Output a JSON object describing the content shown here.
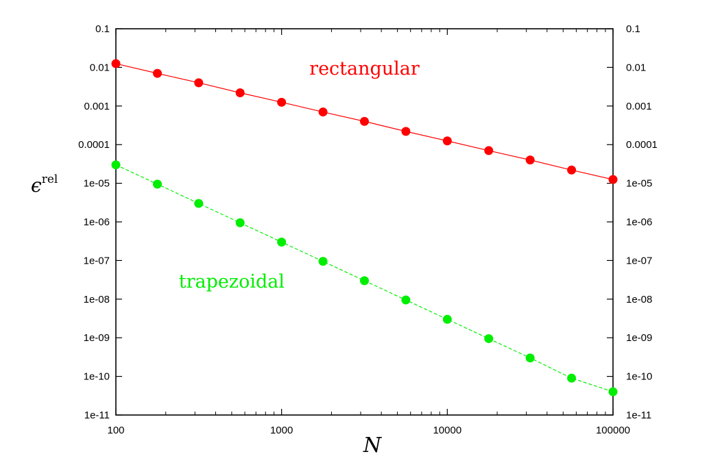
{
  "chart_data": {
    "type": "line",
    "xlabel": "N",
    "ylabel": {
      "main": "ϵ",
      "superscript": "rel"
    },
    "x_scale": "log",
    "y_scale": "log",
    "xlim": [
      100,
      100000
    ],
    "ylim": [
      1e-11,
      0.1
    ],
    "x_ticks": [
      {
        "value": 100,
        "label": "100"
      },
      {
        "value": 1000,
        "label": "1000"
      },
      {
        "value": 10000,
        "label": "10000"
      },
      {
        "value": 100000,
        "label": "100000"
      }
    ],
    "y_ticks": [
      {
        "value": 0.1,
        "label": "0.1"
      },
      {
        "value": 0.01,
        "label": "0.01"
      },
      {
        "value": 0.001,
        "label": "0.001"
      },
      {
        "value": 0.0001,
        "label": "0.0001"
      },
      {
        "value": 1e-05,
        "label": "1e-05"
      },
      {
        "value": 1e-06,
        "label": "1e-06"
      },
      {
        "value": 1e-07,
        "label": "1e-07"
      },
      {
        "value": 1e-08,
        "label": "1e-08"
      },
      {
        "value": 1e-09,
        "label": "1e-09"
      },
      {
        "value": 1e-10,
        "label": "1e-10"
      },
      {
        "value": 1e-11,
        "label": "1e-11"
      }
    ],
    "mirror_y_ticks_right": true,
    "grid": false,
    "series": [
      {
        "name": "rectangular",
        "color": "#ff0000",
        "line_style": "solid",
        "x": [
          100,
          178,
          316,
          562,
          1000,
          1778,
          3162,
          5623,
          10000,
          17783,
          31623,
          56234,
          100000
        ],
        "values": [
          0.0125,
          0.007,
          0.004,
          0.0022,
          0.00125,
          0.0007,
          0.0004,
          0.00022,
          0.000125,
          7e-05,
          4e-05,
          2.2e-05,
          1.25e-05
        ],
        "label_position": {
          "x": 3162,
          "y": 0.0065
        }
      },
      {
        "name": "trapezoidal",
        "color": "#00ee00",
        "line_style": "dashed",
        "x": [
          100,
          178,
          316,
          562,
          1000,
          1778,
          3162,
          5623,
          10000,
          17783,
          31623,
          56234,
          100000
        ],
        "values": [
          3e-05,
          9.5e-06,
          3e-06,
          9.5e-07,
          3e-07,
          9.5e-08,
          3e-08,
          9.5e-09,
          3e-09,
          9.5e-10,
          3e-10,
          9e-11,
          4e-11
        ],
        "label_position": {
          "x": 500,
          "y": 2e-08
        }
      }
    ]
  }
}
